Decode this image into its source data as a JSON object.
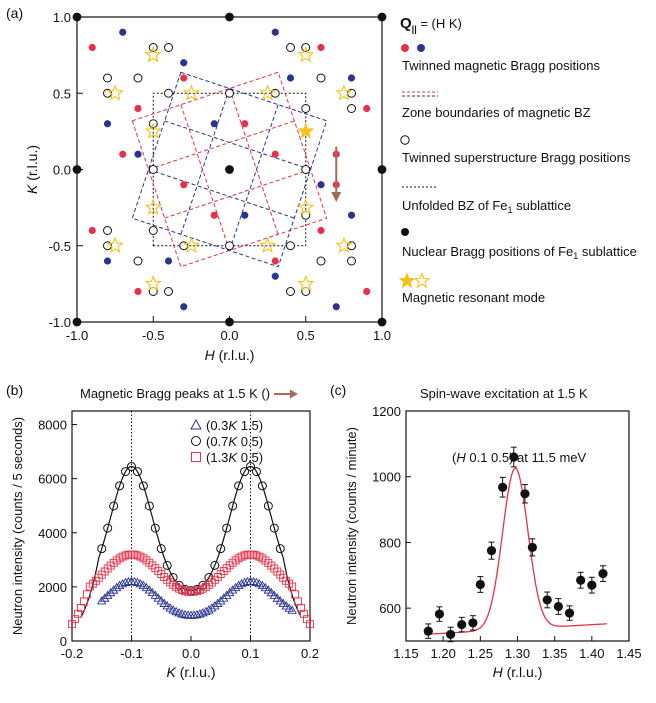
{
  "chart_data": [
    {
      "panel": "(a)",
      "type": "scatter",
      "xlabel_var": "H",
      "xlabel_unit": " (r.l.u.)",
      "ylabel_var": "K",
      "ylabel_unit": " (r.l.u.)",
      "xlim": [
        -1.0,
        1.0
      ],
      "ylim": [
        -1.0,
        1.0
      ],
      "x_ticks": [
        "-1.0",
        "-0.5",
        "0.0",
        "0.5",
        "1.0"
      ],
      "y_ticks": [
        "-1.0",
        "-0.5",
        "0.0",
        "0.5",
        "1.0"
      ],
      "tick_values": [
        -1.0,
        -0.5,
        0.0,
        0.5,
        1.0
      ],
      "legend_title_bold": "Q",
      "legend_title_sub": "||",
      "legend_title_rest": " = (H K)",
      "legend": [
        "Twinned magnetic Bragg positions",
        "Zone boundaries of magnetic BZ",
        "Twinned superstructure Bragg positions",
        "Unfolded BZ of Fe",
        "Nuclear Bragg positions of Fe",
        "Magnetic resonant mode"
      ],
      "legend_sub": "1",
      "legend_suffix_3": " sublattice",
      "legend_suffix_4": " sublattice",
      "colors": {
        "red": "#e8304a",
        "blue": "#2a3390",
        "star": "#f6c21a",
        "arrow": "#a86a58"
      },
      "nuclear": [
        [
          -1,
          1
        ],
        [
          0,
          1
        ],
        [
          1,
          1
        ],
        [
          -1,
          0
        ],
        [
          0,
          0
        ],
        [
          1,
          0
        ],
        [
          -1,
          -1
        ],
        [
          0,
          -1
        ],
        [
          1,
          -1
        ]
      ],
      "magnetic_red": [
        [
          -0.9,
          0.8
        ],
        [
          0.6,
          0.8
        ],
        [
          -0.6,
          0.4
        ],
        [
          0.9,
          0.4
        ],
        [
          -0.7,
          0.1
        ],
        [
          0.3,
          0.1
        ],
        [
          0.7,
          0.1
        ],
        [
          -0.3,
          -0.1
        ],
        [
          0.7,
          -0.1
        ],
        [
          -0.9,
          -0.4
        ],
        [
          0.6,
          -0.4
        ],
        [
          -0.6,
          -0.8
        ],
        [
          0.9,
          -0.8
        ],
        [
          -0.3,
          0.6
        ],
        [
          0.1,
          0.3
        ],
        [
          -0.1,
          -0.3
        ],
        [
          0.3,
          -0.6
        ]
      ],
      "magnetic_blue": [
        [
          -0.7,
          0.9
        ],
        [
          0.3,
          0.9
        ],
        [
          0.8,
          0.6
        ],
        [
          -0.8,
          0.3
        ],
        [
          -0.3,
          0.7
        ],
        [
          0.4,
          0.6
        ],
        [
          -0.4,
          -0.6
        ],
        [
          0.3,
          -0.7
        ],
        [
          0.8,
          -0.3
        ],
        [
          -0.8,
          -0.6
        ],
        [
          -0.3,
          -0.9
        ],
        [
          0.7,
          -0.9
        ],
        [
          -0.6,
          0.1
        ],
        [
          0.6,
          -0.1
        ],
        [
          -0.1,
          0.3
        ],
        [
          0.1,
          -0.3
        ]
      ],
      "superstructure": [
        [
          -0.5,
          0.8
        ],
        [
          -0.4,
          0.8
        ],
        [
          0.4,
          0.8
        ],
        [
          0.5,
          0.8
        ],
        [
          -0.8,
          0.6
        ],
        [
          -0.8,
          0.5
        ],
        [
          0.8,
          -0.5
        ],
        [
          0.8,
          -0.6
        ],
        [
          -0.5,
          -0.8
        ],
        [
          -0.4,
          -0.8
        ],
        [
          0.4,
          -0.8
        ],
        [
          0.5,
          -0.8
        ],
        [
          0.8,
          0.5
        ],
        [
          0.8,
          0.4
        ],
        [
          -0.8,
          -0.4
        ],
        [
          -0.8,
          -0.5
        ],
        [
          -0.4,
          0.5
        ],
        [
          0.4,
          -0.5
        ],
        [
          0.5,
          0.4
        ],
        [
          -0.5,
          -0.4
        ],
        [
          -0.5,
          0.3
        ],
        [
          0.5,
          -0.3
        ],
        [
          -0.3,
          -0.5
        ],
        [
          0.3,
          0.5
        ],
        [
          -0.5,
          0.0
        ],
        [
          0.5,
          0.0
        ],
        [
          0.0,
          0.5
        ],
        [
          0.0,
          -0.5
        ],
        [
          -0.6,
          0.6
        ],
        [
          0.6,
          0.6
        ],
        [
          -0.6,
          -0.6
        ],
        [
          0.6,
          -0.6
        ]
      ],
      "resonance_filled": [
        [
          0.5,
          0.25
        ]
      ],
      "resonance_open": [
        [
          -0.5,
          0.25
        ],
        [
          0.25,
          0.5
        ],
        [
          -0.25,
          0.5
        ],
        [
          -0.5,
          -0.25
        ],
        [
          0.25,
          -0.5
        ],
        [
          -0.25,
          -0.5
        ],
        [
          0.5,
          -0.25
        ],
        [
          -0.75,
          0.5
        ],
        [
          -0.5,
          0.75
        ],
        [
          0.5,
          0.75
        ],
        [
          0.75,
          0.5
        ],
        [
          -0.75,
          -0.5
        ],
        [
          -0.5,
          -0.75
        ],
        [
          0.5,
          -0.75
        ],
        [
          0.75,
          -0.5
        ],
        [
          -0.5,
          0.75
        ]
      ],
      "magnetic_bz_red": [
        [
          0.0,
          0.5
        ],
        [
          0.5,
          0.333
        ],
        [
          0.4,
          -0.5
        ],
        [
          -0.1,
          -0.4
        ],
        [
          -0.5,
          -0.333
        ],
        [
          -0.4,
          0.5
        ],
        [
          0.1,
          0.4
        ]
      ],
      "magnetic_bz_blue": [
        [
          -0.5,
          0.0
        ],
        [
          -0.333,
          -0.5
        ],
        [
          0.5,
          -0.4
        ],
        [
          0.4,
          0.1
        ],
        [
          0.333,
          0.5
        ],
        [
          -0.5,
          0.4
        ],
        [
          -0.4,
          -0.1
        ]
      ],
      "unfolded_bz": [
        [
          -0.5,
          -0.5
        ],
        [
          0.5,
          -0.5
        ],
        [
          0.5,
          0.5
        ],
        [
          -0.5,
          0.5
        ]
      ],
      "scan_arrow": {
        "x": 0.7,
        "y_from": 0.15,
        "y_to": -0.2
      }
    },
    {
      "panel": "(b)",
      "type": "scatter",
      "title": "Magnetic Bragg peaks at 1.5 K (",
      "title_end": ")",
      "xlabel_var": "K",
      "xlabel_unit": " (r.l.u.)",
      "ylabel": "Neutron intensity (counts / 5 seconds)",
      "xlim": [
        -0.2,
        0.2
      ],
      "ylim": [
        0,
        8500
      ],
      "x_ticks": [
        "-0.2",
        "-0.1",
        "0.0",
        "0.1",
        "0.2"
      ],
      "x_tick_values": [
        -0.2,
        -0.1,
        0.0,
        0.1,
        0.2
      ],
      "y_ticks": [
        "0",
        "2000",
        "4000",
        "6000",
        "8000"
      ],
      "y_tick_values": [
        0,
        2000,
        4000,
        6000,
        8000
      ],
      "vlines": [
        -0.1,
        0.1
      ],
      "series": [
        {
          "name": "(0.3K 1.5)",
          "marker": "triangle",
          "color": "#2a3390",
          "center": 780,
          "amp": 1420,
          "wid": 0.042,
          "tail": 0,
          "xstart": -0.15,
          "xend": 0.17,
          "step": 0.005
        },
        {
          "name": "(0.7K 0.5)",
          "marker": "circle",
          "color": "#111111",
          "center": 1700,
          "amp": 4750,
          "wid": 0.035,
          "tail": 0,
          "xstart": -0.15,
          "xend": 0.15,
          "step": 0.01
        },
        {
          "name": "(1.3K 0.5)",
          "marker": "square",
          "color": "#e8304a",
          "center": 1300,
          "amp": 1900,
          "wid": 0.05,
          "tail": 0,
          "xstart": -0.2,
          "xend": 0.2,
          "step": 0.005
        }
      ],
      "legend_names": [
        "(0.3",
        " 1.5)",
        "(0.7",
        " 0.5)",
        "(1.3",
        " 0.5)"
      ],
      "legend_var": "K"
    },
    {
      "panel": "(c)",
      "type": "scatter",
      "title": "Spin-wave excitation at 1.5 K",
      "annotation_pre": "(",
      "annotation_var": "H",
      "annotation_post": " 0.1 0.5) at 11.5 meV",
      "xlabel_var": "H",
      "xlabel_unit": " (r.l.u.)",
      "ylabel": "Neutron intensity (counts / minute)",
      "xlim": [
        1.15,
        1.45
      ],
      "ylim": [
        500,
        1200
      ],
      "x_ticks": [
        "1.15",
        "1.20",
        "1.25",
        "1.30",
        "1.35",
        "1.40",
        "1.45"
      ],
      "x_tick_values": [
        1.15,
        1.2,
        1.25,
        1.3,
        1.35,
        1.4,
        1.45
      ],
      "y_ticks": [
        "600",
        "800",
        "1000",
        "1200"
      ],
      "y_tick_values": [
        600,
        800,
        1000,
        1200
      ],
      "points": [
        {
          "x": 1.18,
          "y": 530,
          "err": 22
        },
        {
          "x": 1.195,
          "y": 582,
          "err": 22
        },
        {
          "x": 1.21,
          "y": 520,
          "err": 22
        },
        {
          "x": 1.225,
          "y": 550,
          "err": 22
        },
        {
          "x": 1.24,
          "y": 555,
          "err": 22
        },
        {
          "x": 1.25,
          "y": 672,
          "err": 24
        },
        {
          "x": 1.265,
          "y": 775,
          "err": 26
        },
        {
          "x": 1.28,
          "y": 968,
          "err": 30
        },
        {
          "x": 1.295,
          "y": 1060,
          "err": 30
        },
        {
          "x": 1.31,
          "y": 948,
          "err": 28
        },
        {
          "x": 1.32,
          "y": 785,
          "err": 26
        },
        {
          "x": 1.34,
          "y": 625,
          "err": 24
        },
        {
          "x": 1.355,
          "y": 605,
          "err": 24
        },
        {
          "x": 1.37,
          "y": 585,
          "err": 22
        },
        {
          "x": 1.385,
          "y": 685,
          "err": 24
        },
        {
          "x": 1.4,
          "y": 670,
          "err": 24
        },
        {
          "x": 1.415,
          "y": 705,
          "err": 24
        }
      ],
      "fit": {
        "base0": 520,
        "slope": 600,
        "amp": 490,
        "center": 1.297,
        "sigma": 0.017
      },
      "fit_color": "#e8304a"
    }
  ]
}
